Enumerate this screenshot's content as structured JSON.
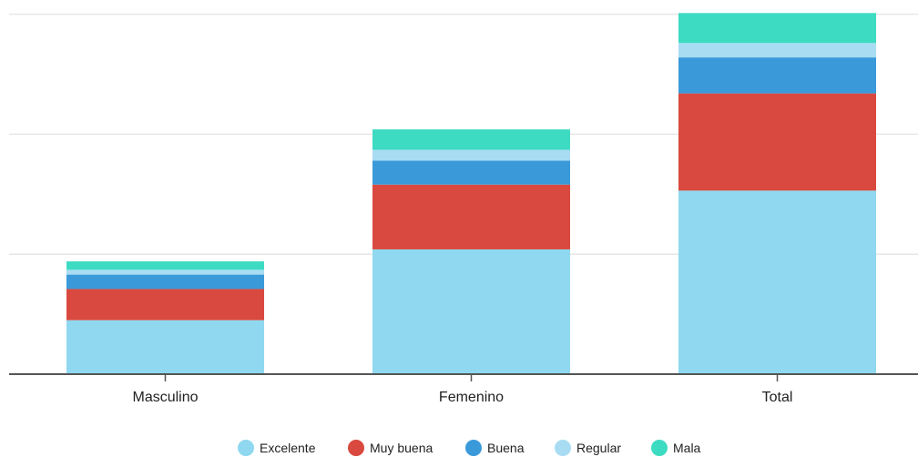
{
  "chart_data": {
    "type": "bar",
    "stacked": true,
    "categories": [
      "Masculino",
      "Femenino",
      "Total"
    ],
    "series": [
      {
        "name": "Excelente",
        "color": "#8fd8f0",
        "values": [
          45,
          104,
          153
        ]
      },
      {
        "name": "Muy buena",
        "color": "#d9493f",
        "values": [
          26,
          54,
          81
        ]
      },
      {
        "name": "Buena",
        "color": "#3a9ad9",
        "values": [
          12,
          20,
          30
        ]
      },
      {
        "name": "Regular",
        "color": "#a8dcf3",
        "values": [
          4,
          9,
          12
        ]
      },
      {
        "name": "Mala",
        "color": "#3ddbc2",
        "values": [
          7,
          17,
          25
        ]
      }
    ],
    "ylim": [
      0,
      302
    ],
    "y_gridlines": [
      100,
      200,
      300
    ],
    "grid": true,
    "legend_position": "bottom",
    "title": "",
    "xlabel": "",
    "ylabel": ""
  }
}
